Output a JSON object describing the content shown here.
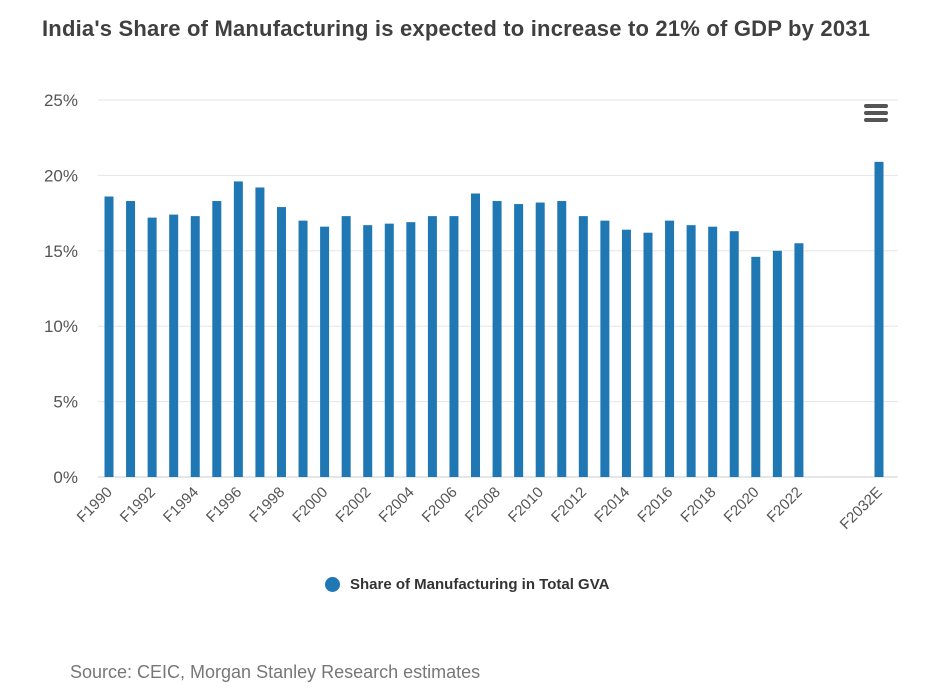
{
  "title": "India's Share of Manufacturing is expected to increase to 21% of GDP by 2031",
  "source": "Source: CEIC, Morgan Stanley Research estimates",
  "menu_icon": "hamburger-menu-icon",
  "colors": {
    "bar": "#1f77b4",
    "grid": "#e6e6e6",
    "axis_text": "#555555"
  },
  "chart_data": {
    "type": "bar",
    "title": "India's Share of Manufacturing is expected to increase to 21% of GDP by 2031",
    "xlabel": "",
    "ylabel": "",
    "ylim": [
      0,
      25
    ],
    "yticks": [
      "0%",
      "5%",
      "10%",
      "15%",
      "20%",
      "25%"
    ],
    "grid": true,
    "legend_position": "bottom-center",
    "categories": [
      "F1990",
      "F1991",
      "F1992",
      "F1993",
      "F1994",
      "F1995",
      "F1996",
      "F1997",
      "F1998",
      "F1999",
      "F2000",
      "F2001",
      "F2002",
      "F2003",
      "F2004",
      "F2005",
      "F2006",
      "F2007",
      "F2008",
      "F2009",
      "F2010",
      "F2011",
      "F2012",
      "F2013",
      "F2014",
      "F2015",
      "F2016",
      "F2017",
      "F2018",
      "F2019",
      "F2020",
      "F2021",
      "F2022",
      "F2032E"
    ],
    "xtick_labels": [
      "F1990",
      "",
      "F1992",
      "",
      "F1994",
      "",
      "F1996",
      "",
      "F1998",
      "",
      "F2000",
      "",
      "F2002",
      "",
      "F2004",
      "",
      "F2006",
      "",
      "F2008",
      "",
      "F2010",
      "",
      "F2012",
      "",
      "F2014",
      "",
      "F2016",
      "",
      "F2018",
      "",
      "F2020",
      "",
      "F2022",
      "F2032E"
    ],
    "series": [
      {
        "name": "Share of Manufacturing in Total GVA",
        "values": [
          18.6,
          18.3,
          17.2,
          17.4,
          17.3,
          18.3,
          19.6,
          19.2,
          17.9,
          17.0,
          16.6,
          17.3,
          16.7,
          16.8,
          16.9,
          17.3,
          17.3,
          18.8,
          18.3,
          18.1,
          18.2,
          18.3,
          17.3,
          17.0,
          16.4,
          16.2,
          17.0,
          16.7,
          16.6,
          16.3,
          14.6,
          15.0,
          15.5,
          20.9
        ]
      }
    ]
  }
}
